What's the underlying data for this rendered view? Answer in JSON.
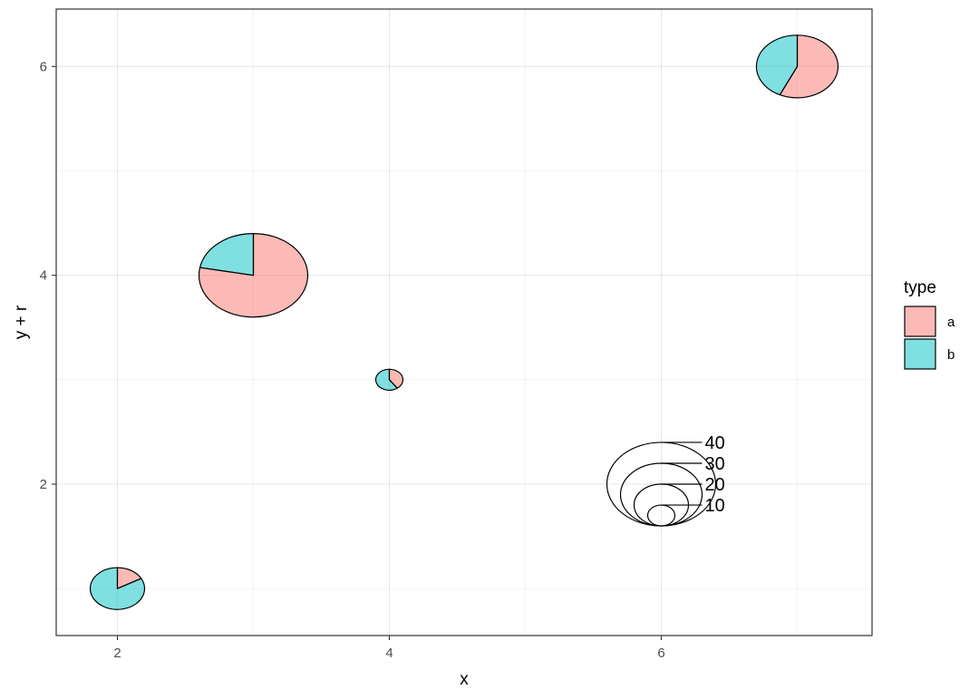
{
  "chart_data": {
    "type": "scatter",
    "subtype": "scatterpie",
    "xlabel": "x",
    "ylabel": "y + r",
    "xlim": [
      1.55,
      7.55
    ],
    "ylim": [
      0.55,
      6.55
    ],
    "x_ticks": [
      2,
      4,
      6
    ],
    "y_ticks": [
      2,
      4,
      6
    ],
    "grid": true,
    "legend": {
      "title": "type",
      "placement": "right",
      "entries": [
        {
          "label": "a",
          "color": "#F8766D"
        },
        {
          "label": "b",
          "color": "#00BFC4"
        }
      ]
    },
    "series": [
      {
        "name": "a",
        "color": "#F8766D"
      },
      {
        "name": "b",
        "color": "#00BFC4"
      }
    ],
    "pies": [
      {
        "x": 2,
        "y": 1.0,
        "r": 0.2,
        "a": 0.17,
        "b": 0.83
      },
      {
        "x": 3,
        "y": 4.0,
        "r": 0.4,
        "a": 0.78,
        "b": 0.22
      },
      {
        "x": 4,
        "y": 3.0,
        "r": 0.1,
        "a": 0.4,
        "b": 0.6
      },
      {
        "x": 7,
        "y": 6.0,
        "r": 0.3,
        "a": 0.57,
        "b": 0.43
      }
    ],
    "size_legend": {
      "x": 6,
      "base_y": 1.6,
      "breaks": [
        10,
        20,
        30,
        40
      ],
      "radii": [
        0.1,
        0.2,
        0.3,
        0.4
      ],
      "labels": [
        "10",
        "20",
        "30",
        "40"
      ]
    }
  }
}
